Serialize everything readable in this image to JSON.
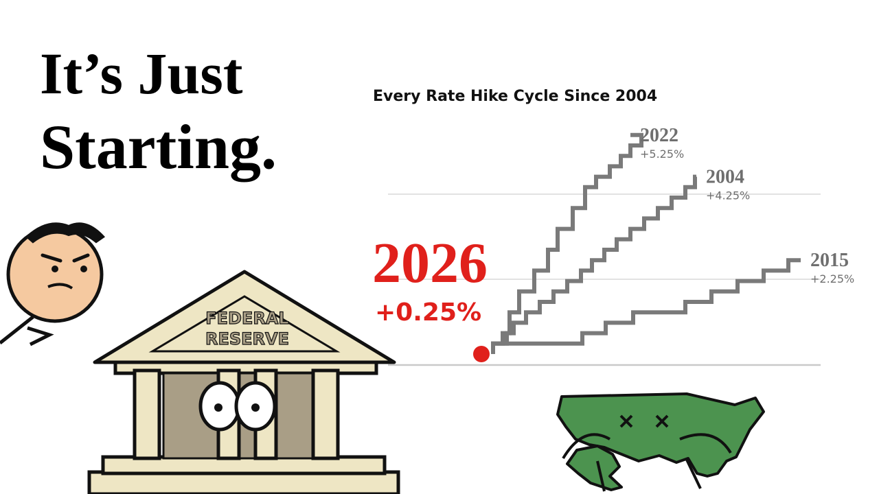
{
  "headline": {
    "line1": "It’s Just",
    "line2": "Starting."
  },
  "chart_data": {
    "type": "line",
    "title": "Every Rate Hike Cycle Since 2004",
    "xlabel": "",
    "ylabel": "",
    "ylim": [
      0,
      5.5
    ],
    "grid": true,
    "colors": {
      "series": "#7a7a7a",
      "highlight": "#e0201b",
      "grid": "#d9d9d9"
    },
    "series": [
      {
        "name": "2022",
        "total_label": "+5.25%",
        "steps": [
          0,
          0.25,
          0.5,
          1,
          1.5,
          2,
          2.5,
          3,
          3.5,
          4,
          4.25,
          4.5,
          4.75,
          5,
          5.25
        ]
      },
      {
        "name": "2004",
        "total_label": "+4.25%",
        "steps": [
          0,
          0.25,
          0.5,
          0.75,
          1,
          1.25,
          1.5,
          1.75,
          2,
          2.25,
          2.5,
          2.75,
          3,
          3.25,
          3.5,
          3.75,
          4,
          4.25
        ]
      },
      {
        "name": "2015",
        "total_label": "+2.25%",
        "steps": [
          0,
          0.25,
          0.5,
          0.75,
          1,
          1.25,
          1.5,
          1.75,
          2,
          2.25
        ]
      }
    ],
    "highlight": {
      "name": "2026",
      "value": 0,
      "total_label": "+0.25%"
    }
  },
  "illustrations": {
    "building_sign": [
      "FEDERAL",
      "RESERVE"
    ]
  }
}
